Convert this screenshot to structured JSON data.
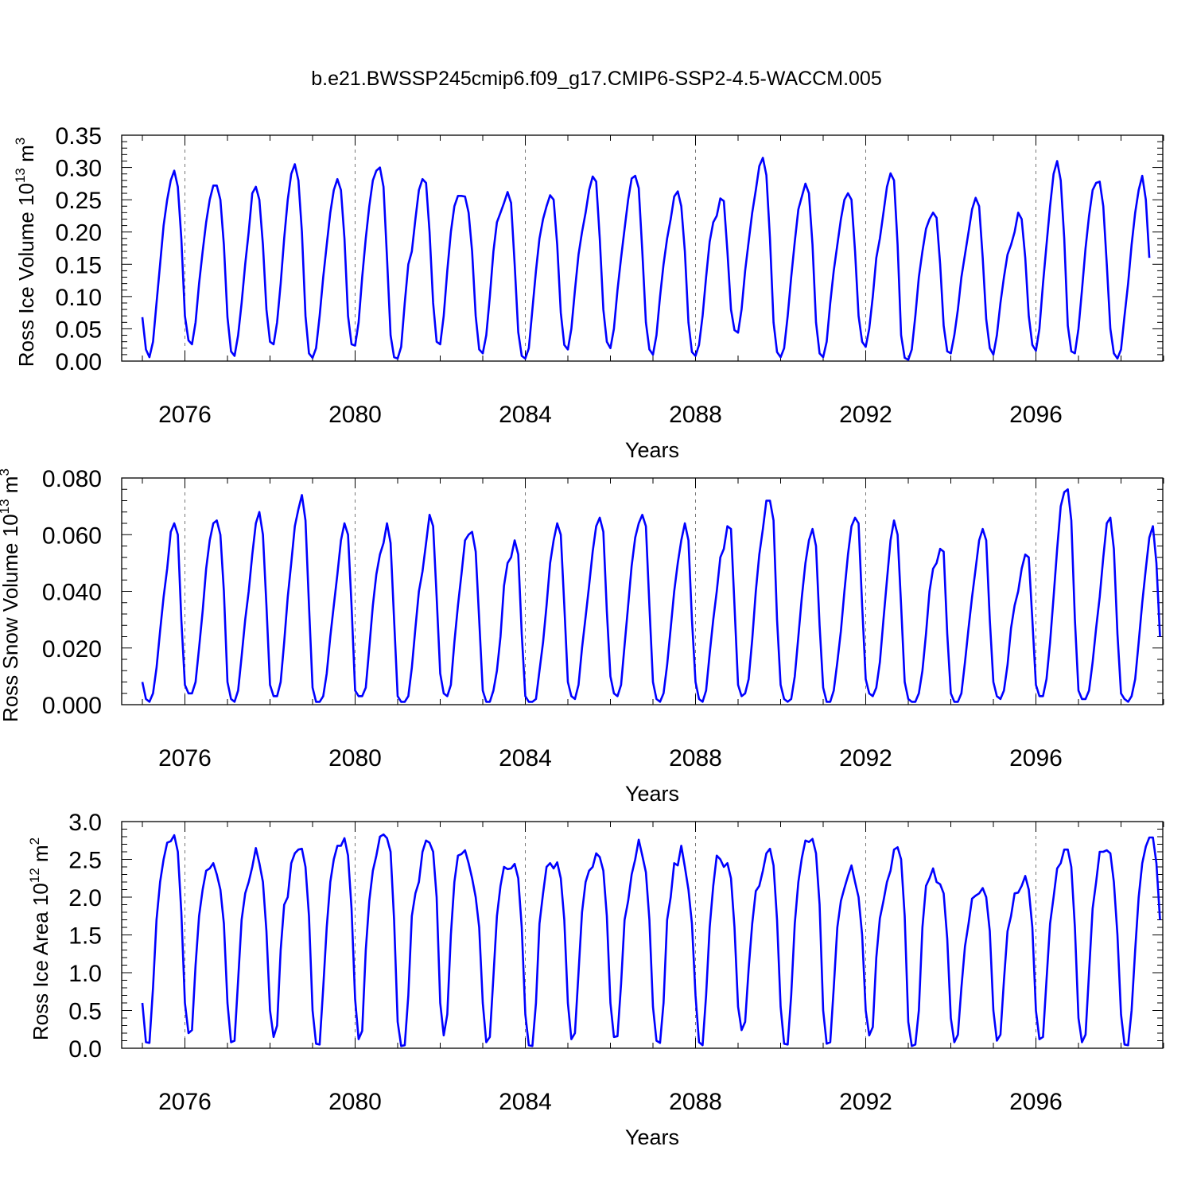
{
  "title": "b.e21.BWSSP245cmip6.f09_g17.CMIP6-SSP2-4.5-WACCM.005",
  "colors": {
    "line": "#0000ff",
    "axis": "#000000",
    "grid": "#777777"
  },
  "chart_data": [
    {
      "type": "line",
      "ylabel_main": "Ross Ice Volume 10",
      "ylabel_exp1": "13",
      "ylabel_unit": " m",
      "ylabel_exp2": "3",
      "xlabel": "Years",
      "xlim": [
        2075.0,
        2099.0
      ],
      "ylim": [
        0.0,
        0.35
      ],
      "xticks": [
        2076,
        2080,
        2084,
        2088,
        2092,
        2096
      ],
      "xtick_labels": [
        "2076",
        "2080",
        "2084",
        "2088",
        "2092",
        "2096"
      ],
      "yticks": [
        0.0,
        0.05,
        0.1,
        0.15,
        0.2,
        0.25,
        0.3,
        0.35
      ],
      "ytick_labels": [
        "0.00",
        "0.05",
        "0.10",
        "0.15",
        "0.20",
        "0.25",
        "0.30",
        "0.35"
      ],
      "grid": "dashed vertical at 4-year ticks",
      "x_start": 2075.0,
      "x_step_years": 0.08333,
      "series": [
        {
          "values": [
            0.068,
            0.018,
            0.006,
            0.03,
            0.09,
            0.15,
            0.21,
            0.25,
            0.28,
            0.295,
            0.27,
            0.19,
            0.07,
            0.032,
            0.026,
            0.06,
            0.12,
            0.17,
            0.215,
            0.25,
            0.272,
            0.272,
            0.25,
            0.18,
            0.068,
            0.015,
            0.008,
            0.04,
            0.09,
            0.15,
            0.2,
            0.26,
            0.27,
            0.25,
            0.18,
            0.08,
            0.03,
            0.026,
            0.06,
            0.12,
            0.19,
            0.25,
            0.29,
            0.305,
            0.28,
            0.2,
            0.07,
            0.012,
            0.005,
            0.02,
            0.07,
            0.13,
            0.18,
            0.23,
            0.265,
            0.282,
            0.265,
            0.19,
            0.07,
            0.026,
            0.024,
            0.06,
            0.13,
            0.19,
            0.24,
            0.28,
            0.295,
            0.3,
            0.27,
            0.16,
            0.04,
            0.006,
            0.004,
            0.022,
            0.09,
            0.15,
            0.17,
            0.22,
            0.265,
            0.282,
            0.276,
            0.2,
            0.09,
            0.03,
            0.026,
            0.07,
            0.14,
            0.2,
            0.24,
            0.256,
            0.256,
            0.255,
            0.23,
            0.17,
            0.07,
            0.018,
            0.012,
            0.04,
            0.1,
            0.17,
            0.215,
            0.23,
            0.245,
            0.262,
            0.245,
            0.15,
            0.045,
            0.008,
            0.004,
            0.02,
            0.08,
            0.14,
            0.19,
            0.22,
            0.24,
            0.257,
            0.25,
            0.18,
            0.075,
            0.025,
            0.018,
            0.05,
            0.11,
            0.165,
            0.2,
            0.23,
            0.265,
            0.286,
            0.278,
            0.19,
            0.08,
            0.03,
            0.02,
            0.05,
            0.11,
            0.16,
            0.205,
            0.25,
            0.283,
            0.287,
            0.268,
            0.17,
            0.06,
            0.018,
            0.01,
            0.04,
            0.1,
            0.15,
            0.19,
            0.22,
            0.255,
            0.263,
            0.24,
            0.17,
            0.06,
            0.014,
            0.008,
            0.025,
            0.07,
            0.13,
            0.185,
            0.215,
            0.225,
            0.252,
            0.248,
            0.17,
            0.08,
            0.048,
            0.044,
            0.08,
            0.14,
            0.185,
            0.23,
            0.265,
            0.302,
            0.315,
            0.288,
            0.19,
            0.06,
            0.014,
            0.006,
            0.02,
            0.07,
            0.13,
            0.185,
            0.235,
            0.255,
            0.275,
            0.26,
            0.18,
            0.06,
            0.012,
            0.006,
            0.03,
            0.09,
            0.14,
            0.18,
            0.22,
            0.25,
            0.26,
            0.25,
            0.17,
            0.07,
            0.03,
            0.022,
            0.05,
            0.1,
            0.16,
            0.19,
            0.23,
            0.27,
            0.291,
            0.28,
            0.18,
            0.04,
            0.005,
            0.002,
            0.018,
            0.07,
            0.13,
            0.17,
            0.205,
            0.22,
            0.23,
            0.222,
            0.15,
            0.055,
            0.015,
            0.012,
            0.04,
            0.08,
            0.13,
            0.165,
            0.2,
            0.235,
            0.253,
            0.24,
            0.16,
            0.065,
            0.02,
            0.01,
            0.04,
            0.09,
            0.13,
            0.165,
            0.18,
            0.2,
            0.23,
            0.22,
            0.16,
            0.07,
            0.025,
            0.016,
            0.05,
            0.12,
            0.18,
            0.24,
            0.29,
            0.31,
            0.28,
            0.19,
            0.055,
            0.015,
            0.012,
            0.05,
            0.11,
            0.175,
            0.225,
            0.265,
            0.276,
            0.278,
            0.24,
            0.15,
            0.05,
            0.012,
            0.004,
            0.018,
            0.07,
            0.12,
            0.18,
            0.23,
            0.265,
            0.287,
            0.25,
            0.16
          ]
        }
      ]
    },
    {
      "type": "line",
      "ylabel_main": "Ross Snow Volume 10",
      "ylabel_exp1": "13",
      "ylabel_unit": " m",
      "ylabel_exp2": "3",
      "xlabel": "Years",
      "xlim": [
        2075.0,
        2099.0
      ],
      "ylim": [
        0.0,
        0.08
      ],
      "xticks": [
        2076,
        2080,
        2084,
        2088,
        2092,
        2096
      ],
      "xtick_labels": [
        "2076",
        "2080",
        "2084",
        "2088",
        "2092",
        "2096"
      ],
      "yticks": [
        0.0,
        0.02,
        0.04,
        0.06,
        0.08
      ],
      "ytick_labels": [
        "0.000",
        "0.020",
        "0.040",
        "0.060",
        "0.080"
      ],
      "grid": "dashed vertical at 4-year ticks",
      "x_start": 2075.0,
      "x_step_years": 0.08333,
      "series": [
        {
          "values": [
            0.008,
            0.002,
            0.001,
            0.004,
            0.013,
            0.026,
            0.038,
            0.048,
            0.061,
            0.064,
            0.06,
            0.03,
            0.007,
            0.004,
            0.004,
            0.008,
            0.02,
            0.033,
            0.048,
            0.058,
            0.064,
            0.065,
            0.06,
            0.04,
            0.008,
            0.002,
            0.001,
            0.005,
            0.017,
            0.03,
            0.04,
            0.053,
            0.064,
            0.068,
            0.06,
            0.035,
            0.007,
            0.003,
            0.003,
            0.008,
            0.022,
            0.038,
            0.05,
            0.063,
            0.069,
            0.074,
            0.065,
            0.035,
            0.006,
            0.001,
            0.001,
            0.003,
            0.011,
            0.024,
            0.035,
            0.046,
            0.058,
            0.064,
            0.06,
            0.035,
            0.005,
            0.003,
            0.003,
            0.006,
            0.02,
            0.035,
            0.046,
            0.053,
            0.057,
            0.064,
            0.057,
            0.03,
            0.003,
            0.001,
            0.001,
            0.003,
            0.013,
            0.027,
            0.04,
            0.047,
            0.057,
            0.067,
            0.063,
            0.038,
            0.011,
            0.004,
            0.003,
            0.007,
            0.022,
            0.035,
            0.046,
            0.058,
            0.06,
            0.061,
            0.054,
            0.03,
            0.005,
            0.001,
            0.001,
            0.005,
            0.012,
            0.024,
            0.042,
            0.05,
            0.052,
            0.058,
            0.053,
            0.025,
            0.003,
            0.001,
            0.001,
            0.002,
            0.012,
            0.022,
            0.035,
            0.05,
            0.058,
            0.064,
            0.06,
            0.035,
            0.008,
            0.003,
            0.002,
            0.007,
            0.02,
            0.031,
            0.042,
            0.054,
            0.063,
            0.066,
            0.061,
            0.033,
            0.01,
            0.004,
            0.003,
            0.007,
            0.021,
            0.035,
            0.049,
            0.059,
            0.064,
            0.067,
            0.063,
            0.035,
            0.008,
            0.002,
            0.001,
            0.004,
            0.014,
            0.027,
            0.04,
            0.05,
            0.058,
            0.064,
            0.058,
            0.03,
            0.008,
            0.002,
            0.001,
            0.005,
            0.018,
            0.03,
            0.04,
            0.052,
            0.055,
            0.063,
            0.062,
            0.035,
            0.007,
            0.003,
            0.004,
            0.009,
            0.023,
            0.04,
            0.053,
            0.062,
            0.072,
            0.072,
            0.065,
            0.03,
            0.007,
            0.002,
            0.001,
            0.002,
            0.01,
            0.024,
            0.038,
            0.05,
            0.058,
            0.062,
            0.056,
            0.028,
            0.006,
            0.001,
            0.001,
            0.005,
            0.015,
            0.026,
            0.04,
            0.053,
            0.063,
            0.066,
            0.064,
            0.035,
            0.009,
            0.004,
            0.003,
            0.006,
            0.015,
            0.03,
            0.044,
            0.058,
            0.065,
            0.06,
            0.035,
            0.008,
            0.002,
            0.001,
            0.001,
            0.004,
            0.012,
            0.025,
            0.04,
            0.048,
            0.05,
            0.055,
            0.054,
            0.025,
            0.004,
            0.001,
            0.001,
            0.004,
            0.015,
            0.027,
            0.038,
            0.048,
            0.058,
            0.062,
            0.058,
            0.03,
            0.008,
            0.003,
            0.002,
            0.005,
            0.014,
            0.027,
            0.035,
            0.04,
            0.048,
            0.053,
            0.052,
            0.03,
            0.007,
            0.003,
            0.003,
            0.009,
            0.022,
            0.038,
            0.055,
            0.07,
            0.075,
            0.076,
            0.065,
            0.03,
            0.005,
            0.002,
            0.002,
            0.005,
            0.015,
            0.027,
            0.038,
            0.052,
            0.064,
            0.066,
            0.055,
            0.025,
            0.004,
            0.002,
            0.001,
            0.003,
            0.009,
            0.022,
            0.036,
            0.048,
            0.059,
            0.063,
            0.05,
            0.024
          ]
        }
      ]
    },
    {
      "type": "line",
      "ylabel_main": "Ross Ice Area 10",
      "ylabel_exp1": "12",
      "ylabel_unit": " m",
      "ylabel_exp2": "2",
      "xlabel": "Years",
      "xlim": [
        2075.0,
        2099.0
      ],
      "ylim": [
        0.0,
        3.0
      ],
      "xticks": [
        2076,
        2080,
        2084,
        2088,
        2092,
        2096
      ],
      "xtick_labels": [
        "2076",
        "2080",
        "2084",
        "2088",
        "2092",
        "2096"
      ],
      "yticks": [
        0.0,
        0.5,
        1.0,
        1.5,
        2.0,
        2.5,
        3.0
      ],
      "ytick_labels": [
        "0.0",
        "0.5",
        "1.0",
        "1.5",
        "2.0",
        "2.5",
        "3.0"
      ],
      "grid": "dashed vertical at 4-year ticks",
      "x_start": 2075.0,
      "x_step_years": 0.08333,
      "series": [
        {
          "values": [
            0.6,
            0.08,
            0.07,
            0.8,
            1.7,
            2.2,
            2.5,
            2.72,
            2.74,
            2.82,
            2.6,
            1.8,
            0.6,
            0.2,
            0.24,
            1.1,
            1.75,
            2.1,
            2.35,
            2.38,
            2.45,
            2.3,
            2.1,
            1.65,
            0.6,
            0.08,
            0.1,
            0.9,
            1.7,
            2.05,
            2.2,
            2.4,
            2.65,
            2.45,
            2.2,
            1.55,
            0.5,
            0.15,
            0.3,
            1.3,
            1.9,
            2.0,
            2.45,
            2.58,
            2.63,
            2.64,
            2.4,
            1.75,
            0.5,
            0.06,
            0.05,
            0.8,
            1.6,
            2.2,
            2.5,
            2.68,
            2.68,
            2.78,
            2.55,
            1.85,
            0.65,
            0.12,
            0.23,
            1.3,
            1.95,
            2.35,
            2.55,
            2.8,
            2.83,
            2.78,
            2.6,
            1.7,
            0.35,
            0.03,
            0.04,
            0.7,
            1.75,
            2.05,
            2.2,
            2.6,
            2.75,
            2.72,
            2.6,
            2.0,
            0.6,
            0.17,
            0.45,
            1.5,
            2.2,
            2.55,
            2.57,
            2.62,
            2.45,
            2.25,
            2.0,
            1.6,
            0.6,
            0.08,
            0.15,
            0.95,
            1.75,
            2.15,
            2.4,
            2.37,
            2.38,
            2.44,
            2.25,
            1.6,
            0.45,
            0.04,
            0.03,
            0.6,
            1.65,
            2.05,
            2.4,
            2.45,
            2.38,
            2.46,
            2.25,
            1.7,
            0.6,
            0.12,
            0.2,
            1.0,
            1.8,
            2.2,
            2.35,
            2.4,
            2.58,
            2.53,
            2.35,
            1.75,
            0.6,
            0.15,
            0.16,
            0.85,
            1.7,
            1.95,
            2.3,
            2.5,
            2.76,
            2.55,
            2.33,
            1.7,
            0.55,
            0.1,
            0.07,
            0.6,
            1.7,
            2.0,
            2.45,
            2.42,
            2.68,
            2.4,
            2.1,
            1.65,
            0.7,
            0.08,
            0.04,
            0.7,
            1.6,
            2.15,
            2.55,
            2.5,
            2.4,
            2.45,
            2.25,
            1.6,
            0.55,
            0.24,
            0.35,
            1.05,
            1.65,
            2.08,
            2.15,
            2.35,
            2.58,
            2.64,
            2.42,
            1.7,
            0.55,
            0.06,
            0.05,
            0.7,
            1.65,
            2.2,
            2.52,
            2.75,
            2.73,
            2.77,
            2.58,
            1.9,
            0.5,
            0.06,
            0.08,
            0.8,
            1.6,
            1.95,
            2.12,
            2.28,
            2.42,
            2.2,
            2.0,
            1.5,
            0.5,
            0.17,
            0.28,
            1.2,
            1.72,
            1.95,
            2.2,
            2.35,
            2.63,
            2.66,
            2.5,
            1.75,
            0.35,
            0.03,
            0.05,
            0.5,
            1.6,
            2.15,
            2.25,
            2.38,
            2.2,
            2.17,
            2.05,
            1.45,
            0.4,
            0.08,
            0.18,
            0.8,
            1.35,
            1.65,
            1.98,
            2.02,
            2.05,
            2.12,
            2.0,
            1.55,
            0.5,
            0.1,
            0.18,
            0.9,
            1.55,
            1.75,
            2.05,
            2.06,
            2.15,
            2.28,
            2.1,
            1.6,
            0.5,
            0.12,
            0.15,
            0.9,
            1.65,
            2.0,
            2.38,
            2.45,
            2.63,
            2.63,
            2.4,
            1.6,
            0.4,
            0.08,
            0.18,
            1.0,
            1.85,
            2.2,
            2.6,
            2.6,
            2.62,
            2.58,
            2.2,
            1.5,
            0.45,
            0.05,
            0.04,
            0.5,
            1.3,
            2.0,
            2.45,
            2.67,
            2.79,
            2.79,
            2.45,
            1.7
          ]
        }
      ]
    }
  ]
}
